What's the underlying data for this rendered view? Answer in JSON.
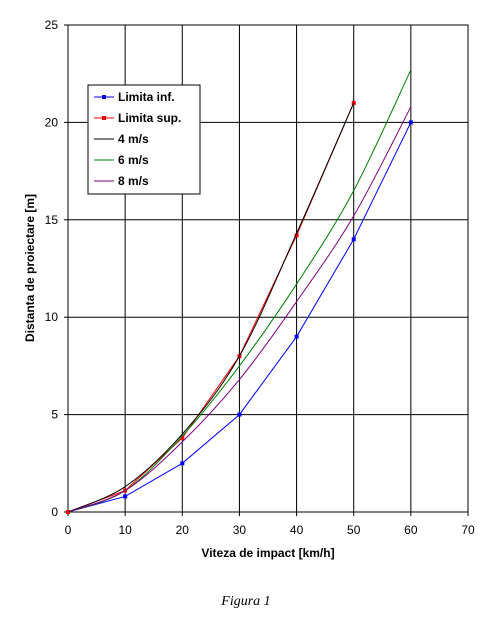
{
  "chart_data": {
    "type": "line",
    "xlabel": "Viteza de impact [km/h]",
    "ylabel": "Distanta de proiectare [m]",
    "xlim": [
      0,
      70
    ],
    "ylim": [
      0,
      25
    ],
    "x_ticks": [
      0,
      10,
      20,
      30,
      40,
      50,
      60,
      70
    ],
    "y_ticks": [
      0,
      5,
      10,
      15,
      20,
      25
    ],
    "grid": true,
    "legend_position": "top-left",
    "series": [
      {
        "name": "Limita inf.",
        "color": "#0000ff",
        "markers": true,
        "x": [
          0,
          10,
          20,
          30,
          40,
          50,
          60
        ],
        "y": [
          0,
          0.8,
          2.5,
          5,
          9,
          14,
          20
        ]
      },
      {
        "name": "Limita sup.",
        "color": "#ff0000",
        "markers": true,
        "x": [
          0,
          10,
          20,
          30,
          40,
          50
        ],
        "y": [
          0,
          1.1,
          3.8,
          8,
          14.2,
          21
        ]
      },
      {
        "name": "4 m/s",
        "color": "#000000",
        "markers": false,
        "x": [
          0,
          10,
          20,
          30,
          40,
          50
        ],
        "y": [
          0,
          1.3,
          4.0,
          8.0,
          14.3,
          21.0
        ]
      },
      {
        "name": "6 m/s",
        "color": "#008000",
        "markers": false,
        "x": [
          0,
          10,
          20,
          30,
          40,
          50,
          60
        ],
        "y": [
          0,
          1.1,
          3.9,
          7.5,
          11.7,
          16.5,
          22.7
        ]
      },
      {
        "name": "8 m/s",
        "color": "#800080",
        "markers": false,
        "x": [
          0,
          10,
          20,
          30,
          40,
          50,
          60
        ],
        "y": [
          0,
          1.1,
          3.6,
          6.8,
          10.8,
          15.2,
          20.8
        ]
      }
    ]
  },
  "caption": "Figura 1"
}
